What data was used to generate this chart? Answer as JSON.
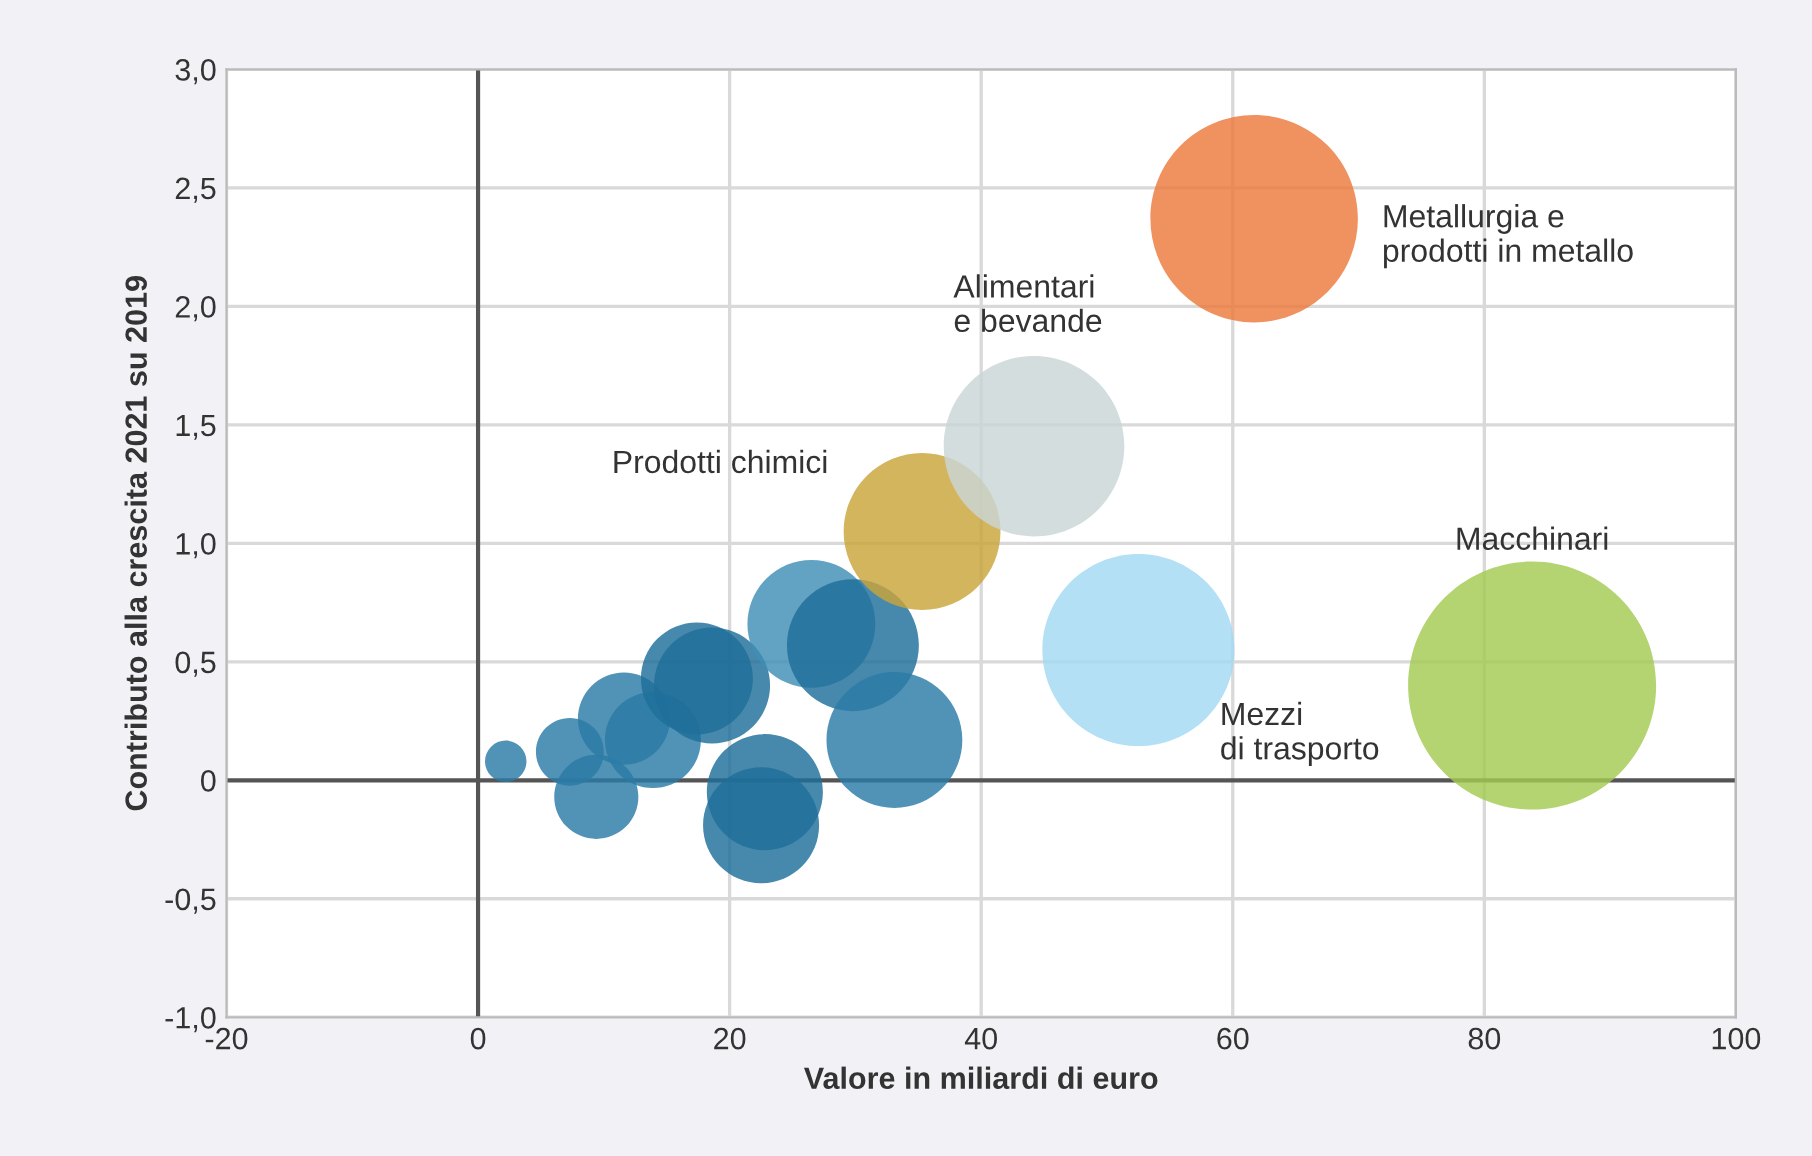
{
  "chart_data": {
    "type": "bubble",
    "xlabel": "Valore in miliardi di euro",
    "ylabel": "Contributo alla crescita 2021 su 2019",
    "x": [
      2.2,
      7.3,
      9.4,
      11.6,
      13.9,
      17.4,
      18.6,
      26.5,
      29.8,
      33.1,
      22.8,
      22.5,
      35.3,
      44.2,
      61.7,
      52.5,
      83.8
    ],
    "values": [
      0.08,
      0.12,
      -0.07,
      0.26,
      0.17,
      0.43,
      0.4,
      0.66,
      0.57,
      0.17,
      -0.05,
      -0.19,
      1.05,
      1.41,
      2.37,
      0.55,
      0.4
    ],
    "sizes": [
      0.028,
      0.075,
      0.115,
      0.138,
      0.15,
      0.204,
      0.219,
      0.266,
      0.283,
      0.3,
      0.219,
      0.219,
      0.4,
      0.53,
      0.7,
      0.6,
      1.0
    ],
    "colors": [
      "#2b7ba6",
      "#2b7ba6",
      "#2b7ba6",
      "#2b7ba6",
      "#2b7ba6",
      "#1f6f9a",
      "#1f6f9a",
      "#3f8db5",
      "#1f6f9a",
      "#2b7ba6",
      "#1f6f9a",
      "#1f6f9a",
      "#c9a53a",
      "#c9d6d6",
      "#ec7a3c",
      "#a3d9f3",
      "#a3c952"
    ],
    "annotations": [
      "Prodotti chimici",
      "Alimentari\ne bevande",
      "Metallurgia e\nprodotti in metallo",
      "Mezzi\ndi trasporto",
      "Macchinari"
    ],
    "xlim": [
      -20,
      100
    ],
    "xticks": [
      -20,
      0,
      20,
      40,
      60,
      80,
      100
    ],
    "ylim": [
      -1.0,
      3.0
    ],
    "yticks": [
      {
        "value": -1.0,
        "label": "-1,0"
      },
      {
        "value": -0.5,
        "label": "-0,5"
      },
      {
        "value": 0,
        "label": "0"
      },
      {
        "value": 0.5,
        "label": "0,5"
      },
      {
        "value": 1.0,
        "label": "1,0"
      },
      {
        "value": 1.5,
        "label": "1,5"
      },
      {
        "value": 2.0,
        "label": "2,0"
      },
      {
        "value": 2.5,
        "label": "2,5"
      },
      {
        "value": 3.0,
        "label": "3,0"
      }
    ],
    "grid": true
  }
}
